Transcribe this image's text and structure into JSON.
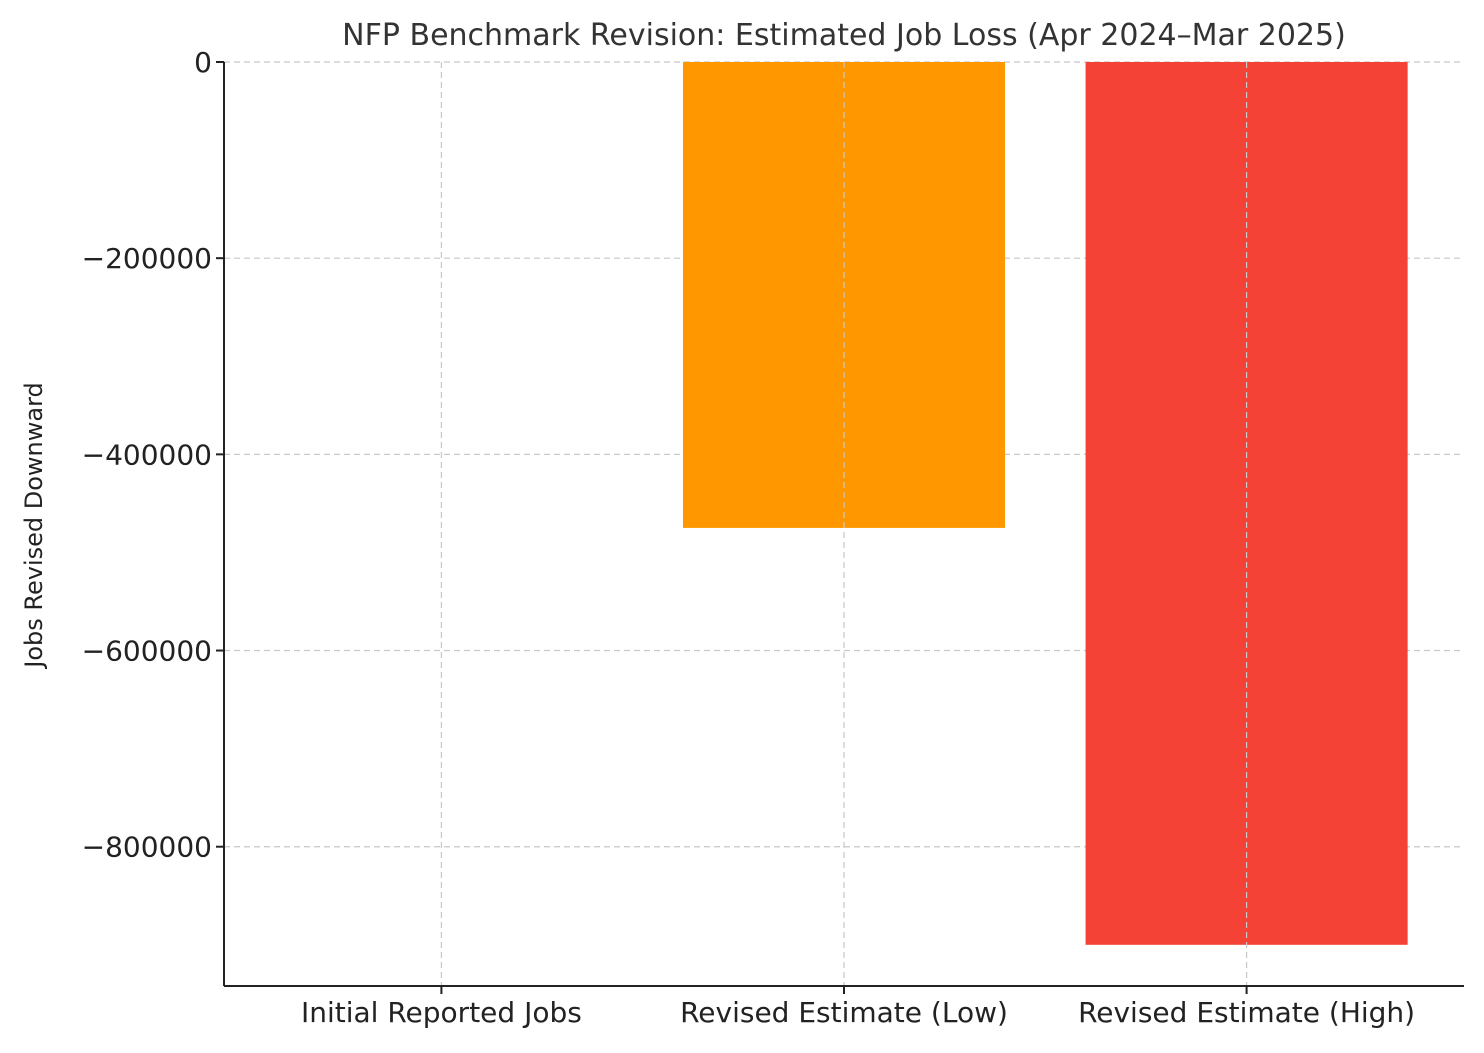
{
  "chart_data": {
    "type": "bar",
    "title": "NFP Benchmark Revision: Estimated Job Loss (Apr 2024–Mar 2025)",
    "xlabel": "",
    "ylabel": "Jobs Revised Downward",
    "categories": [
      "Initial Reported Jobs",
      "Revised Estimate (Low)",
      "Revised Estimate (High)"
    ],
    "values": [
      0,
      -475000,
      -900000
    ],
    "colors": [
      "#2196f3",
      "#ff9800",
      "#f44336"
    ],
    "ylim": [
      -942000,
      0
    ],
    "yticks": [
      0,
      -200000,
      -400000,
      -600000,
      -800000
    ],
    "ytick_labels": [
      "0",
      "−200000",
      "−400000",
      "−600000",
      "−800000"
    ],
    "grid": true,
    "legend": "none"
  }
}
